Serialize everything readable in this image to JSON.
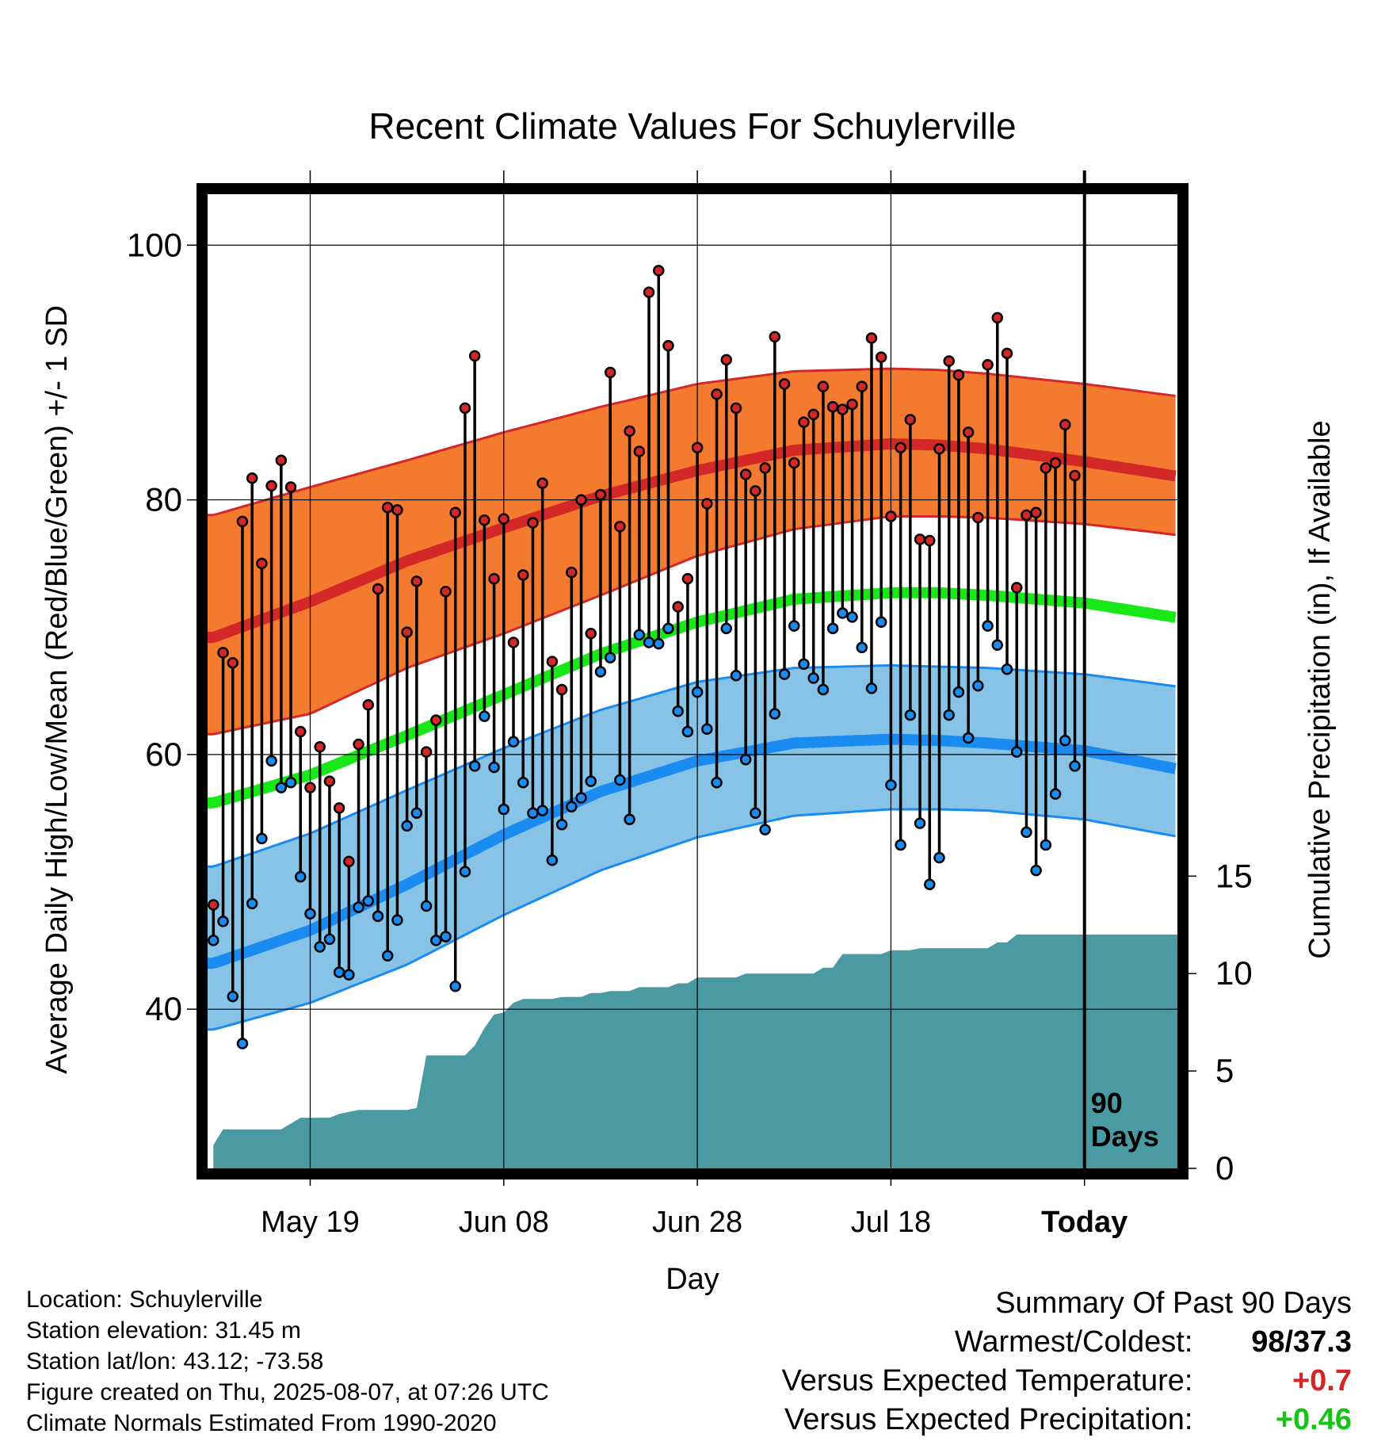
{
  "chart_data": {
    "type": "line",
    "title": "Recent Climate Values For Schuylerville",
    "xlabel": "Day",
    "ylabel_left": "Average Daily High/Low/Mean (Red/Blue/Green) +/- 1 SD",
    "ylabel_right": "Cumulative Precipitation (in), If Available",
    "x_ticks": [
      {
        "day": 10,
        "label": "May 19"
      },
      {
        "day": 30,
        "label": "Jun 08"
      },
      {
        "day": 50,
        "label": "Jun 28"
      },
      {
        "day": 70,
        "label": "Jul 18"
      },
      {
        "day": 90,
        "label": "Today"
      }
    ],
    "x_range": [
      -0.6,
      99.6
    ],
    "y_left_ticks": [
      "40",
      "60",
      "80",
      "100"
    ],
    "y_left_range": [
      27.5,
      104
    ],
    "y_right_ticks": [
      "0",
      "5",
      "10",
      "15"
    ],
    "y_right_range": [
      0,
      50
    ],
    "today_marker_label": "90 Days",
    "colors": {
      "high_band": "#f47a30",
      "high_line": "#d42828",
      "low_band": "#87c3e7",
      "low_line": "#1a8bf0",
      "mean_line": "#18e818",
      "precip": "#4a9aa4"
    },
    "normals": {
      "days": [
        0,
        10,
        20,
        30,
        40,
        50,
        60,
        70,
        75,
        80,
        90,
        100
      ],
      "high_mean": [
        69.2,
        72.0,
        75.2,
        77.8,
        80.3,
        82.3,
        83.9,
        84.4,
        84.3,
        84.0,
        83.0,
        81.8
      ],
      "high_upper": [
        78.8,
        81.0,
        83.1,
        85.3,
        87.3,
        89.1,
        90.1,
        90.3,
        90.2,
        89.9,
        89.1,
        88.1
      ],
      "high_lower": [
        61.6,
        63.2,
        66.8,
        69.5,
        72.5,
        75.6,
        77.7,
        78.7,
        78.7,
        78.6,
        78.1,
        77.2
      ],
      "mean": [
        56.2,
        58.4,
        61.5,
        64.7,
        67.9,
        70.4,
        72.2,
        72.7,
        72.7,
        72.5,
        71.9,
        70.7
      ],
      "low_mean": [
        43.6,
        46.2,
        49.8,
        53.7,
        57.1,
        59.5,
        60.9,
        61.2,
        61.1,
        60.9,
        60.3,
        58.8
      ],
      "low_upper": [
        51.2,
        53.8,
        57.2,
        60.5,
        63.5,
        65.7,
        66.8,
        67.0,
        66.9,
        66.8,
        66.3,
        65.3
      ],
      "low_lower": [
        38.4,
        40.5,
        43.5,
        47.4,
        50.9,
        53.5,
        55.2,
        55.7,
        55.7,
        55.6,
        54.9,
        53.5
      ]
    },
    "daily_high": [
      48.2,
      68.0,
      67.2,
      78.3,
      81.7,
      75.0,
      81.1,
      83.1,
      81.0,
      61.8,
      57.4,
      60.6,
      57.9,
      55.8,
      51.6,
      60.8,
      63.9,
      73.0,
      79.4,
      79.2,
      69.6,
      73.6,
      60.2,
      62.7,
      72.8,
      79.0,
      87.2,
      91.3,
      78.4,
      73.8,
      78.5,
      68.8,
      74.1,
      78.2,
      81.3,
      67.3,
      65.1,
      74.3,
      80.0,
      69.5,
      80.4,
      90.0,
      77.9,
      85.4,
      83.8,
      96.3,
      98.0,
      92.1,
      71.6,
      73.8,
      84.1,
      79.7,
      88.3,
      91.0,
      87.2,
      82.0,
      80.7,
      82.5,
      92.8,
      89.1,
      82.9,
      86.1,
      86.7,
      88.9,
      87.3,
      87.1,
      87.5,
      88.9,
      92.7,
      91.2,
      78.7,
      84.1,
      86.3,
      76.9,
      76.8,
      84.0,
      90.9,
      89.8,
      85.3,
      78.6,
      90.6,
      94.3,
      91.5,
      73.1,
      78.8,
      79.0,
      82.5,
      82.9,
      85.9,
      81.9
    ],
    "daily_low": [
      45.4,
      46.9,
      41.0,
      37.3,
      48.3,
      53.4,
      59.5,
      57.4,
      57.8,
      50.4,
      47.5,
      44.9,
      45.5,
      42.9,
      42.7,
      48.0,
      48.5,
      47.3,
      44.2,
      47.0,
      54.4,
      55.4,
      48.1,
      45.4,
      45.7,
      41.8,
      50.8,
      59.1,
      63.0,
      59.0,
      55.7,
      61.0,
      57.8,
      55.4,
      55.6,
      51.7,
      54.5,
      55.9,
      56.6,
      57.9,
      66.5,
      67.6,
      58.0,
      54.9,
      69.4,
      68.8,
      68.7,
      69.9,
      63.4,
      61.8,
      64.9,
      62.0,
      57.8,
      69.9,
      66.2,
      59.6,
      55.4,
      54.1,
      63.2,
      66.3,
      70.1,
      67.1,
      66.0,
      65.1,
      69.9,
      71.1,
      70.8,
      68.4,
      65.2,
      70.4,
      57.6,
      52.9,
      63.1,
      54.6,
      49.8,
      51.9,
      63.1,
      64.9,
      61.3,
      65.4,
      70.1,
      68.6,
      66.7,
      60.2,
      53.9,
      50.9,
      52.9,
      56.9,
      61.1,
      59.1
    ],
    "precip_cumulative": {
      "days": [
        0,
        1,
        2,
        7,
        8,
        9,
        10,
        11,
        12,
        13,
        14,
        15,
        16,
        17,
        18,
        19,
        20,
        21,
        22,
        23,
        24,
        25,
        26,
        27,
        28,
        29,
        30,
        31,
        32,
        33,
        34,
        35,
        36,
        37,
        38,
        39,
        40,
        41,
        42,
        43,
        44,
        45,
        46,
        47,
        48,
        49,
        50,
        51,
        52,
        53,
        54,
        55,
        56,
        57,
        58,
        59,
        60,
        61,
        62,
        63,
        64,
        65,
        66,
        67,
        68,
        69,
        70,
        71,
        72,
        73,
        74,
        75,
        76,
        77,
        78,
        79,
        80,
        81,
        82,
        83,
        84,
        85,
        86,
        87,
        88,
        89,
        90,
        99.6
      ],
      "values": [
        1.2,
        2.0,
        2.0,
        2.0,
        2.3,
        2.6,
        2.6,
        2.6,
        2.6,
        2.8,
        2.9,
        3.0,
        3.0,
        3.0,
        3.0,
        3.0,
        3.0,
        3.1,
        5.8,
        5.8,
        5.8,
        5.8,
        5.8,
        6.3,
        7.2,
        7.9,
        8.0,
        8.5,
        8.7,
        8.7,
        8.7,
        8.7,
        8.8,
        8.8,
        8.8,
        9.0,
        9.0,
        9.1,
        9.1,
        9.1,
        9.3,
        9.3,
        9.3,
        9.3,
        9.5,
        9.5,
        9.8,
        9.8,
        9.8,
        9.8,
        9.8,
        10.0,
        10.0,
        10.0,
        10.0,
        10.0,
        10.0,
        10.0,
        10.0,
        10.3,
        10.3,
        11.0,
        11.0,
        11.0,
        11.0,
        11.0,
        11.2,
        11.2,
        11.2,
        11.3,
        11.3,
        11.3,
        11.3,
        11.3,
        11.3,
        11.3,
        11.3,
        11.6,
        11.6,
        12.0,
        12.0,
        12.0,
        12.0,
        12.0,
        12.0,
        12.0,
        12.0,
        12.0
      ]
    }
  },
  "info": {
    "location": "Location: Schuylerville",
    "elevation": "Station elevation: 31.45 m",
    "latlon": "Station lat/lon: 43.12; -73.58",
    "created": "Figure created on Thu, 2025-08-07, at 07:26 UTC",
    "normals": "Climate Normals Estimated From 1990-2020"
  },
  "summary": {
    "title": "Summary Of Past 90 Days",
    "warmest_coldest_label": "Warmest/Coldest:",
    "warmest": "98",
    "coldest": "/37.3",
    "temp_label": "Versus Expected Temperature:",
    "temp_value": "+0.7",
    "precip_label": "Versus Expected Precipitation:",
    "precip_value": "+0.46"
  }
}
